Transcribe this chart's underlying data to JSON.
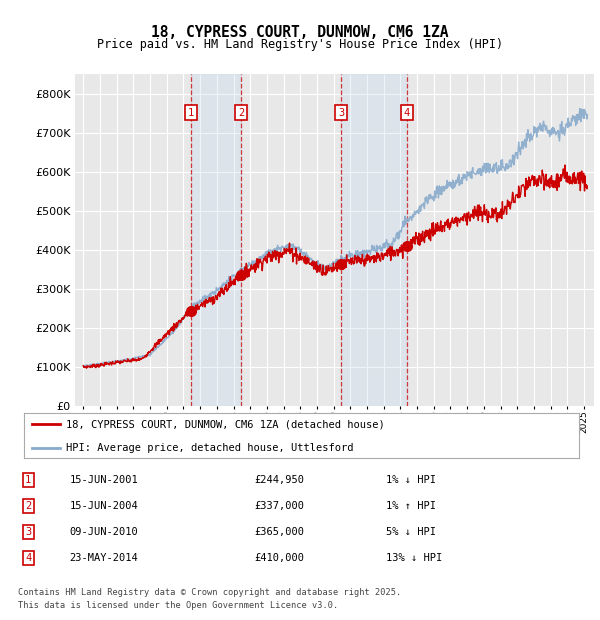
{
  "title": "18, CYPRESS COURT, DUNMOW, CM6 1ZA",
  "subtitle": "Price paid vs. HM Land Registry's House Price Index (HPI)",
  "ylim": [
    0,
    850000
  ],
  "yticks": [
    0,
    100000,
    200000,
    300000,
    400000,
    500000,
    600000,
    700000,
    800000
  ],
  "background_color": "#ffffff",
  "plot_bg_color": "#e8e8e8",
  "grid_color": "#ffffff",
  "line_color_red": "#cc0000",
  "line_color_blue": "#88aacc",
  "transactions": [
    {
      "num": 1,
      "date": "15-JUN-2001",
      "price": 244950,
      "x_year": 2001.45
    },
    {
      "num": 2,
      "date": "15-JUN-2004",
      "price": 337000,
      "x_year": 2004.45
    },
    {
      "num": 3,
      "date": "09-JUN-2010",
      "price": 365000,
      "x_year": 2010.44
    },
    {
      "num": 4,
      "date": "23-MAY-2014",
      "price": 410000,
      "x_year": 2014.39
    }
  ],
  "legend_label_red": "18, CYPRESS COURT, DUNMOW, CM6 1ZA (detached house)",
  "legend_label_blue": "HPI: Average price, detached house, Uttlesford",
  "footer1": "Contains HM Land Registry data © Crown copyright and database right 2025.",
  "footer2": "This data is licensed under the Open Government Licence v3.0.",
  "table_rows": [
    {
      "num": 1,
      "date": "15-JUN-2001",
      "price": "£244,950",
      "hpi": "1% ↓ HPI"
    },
    {
      "num": 2,
      "date": "15-JUN-2004",
      "price": "£337,000",
      "hpi": "1% ↑ HPI"
    },
    {
      "num": 3,
      "date": "09-JUN-2010",
      "price": "£365,000",
      "hpi": "5% ↓ HPI"
    },
    {
      "num": 4,
      "date": "23-MAY-2014",
      "price": "£410,000",
      "hpi": "13% ↓ HPI"
    }
  ],
  "xlim_left": 1994.5,
  "xlim_right": 2025.6
}
